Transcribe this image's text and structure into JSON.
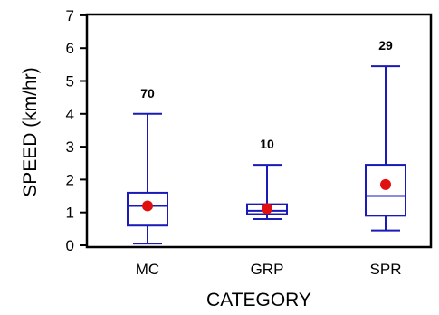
{
  "chart_data": {
    "type": "boxplot",
    "title": "",
    "xlabel": "CATEGORY",
    "ylabel": "SPEED  (km/hr)",
    "ylim": [
      0,
      7
    ],
    "yticks": [
      "0",
      "1",
      "2",
      "3",
      "4",
      "5",
      "6",
      "7"
    ],
    "grid": false,
    "categories": [
      "MC",
      "GRP",
      "SPR"
    ],
    "boxes": [
      {
        "category": "MC",
        "count": "70",
        "whisker_low": 0.05,
        "q1": 0.6,
        "median": 1.2,
        "q3": 1.6,
        "whisker_high": 4.0,
        "mean": 1.2
      },
      {
        "category": "GRP",
        "count": "10",
        "whisker_low": 0.8,
        "q1": 0.95,
        "median": 1.05,
        "q3": 1.25,
        "whisker_high": 2.45,
        "mean": 1.12
      },
      {
        "category": "SPR",
        "count": "29",
        "whisker_low": 0.45,
        "q1": 0.9,
        "median": 1.5,
        "q3": 2.45,
        "whisker_high": 5.45,
        "mean": 1.85
      }
    ],
    "colors": {
      "box": "#1a1ab8",
      "mean_marker": "#e01010",
      "axis": "#000000"
    }
  }
}
